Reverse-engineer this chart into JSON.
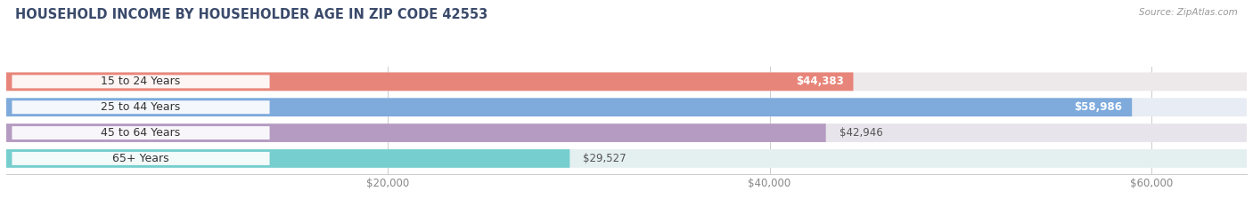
{
  "title": "HOUSEHOLD INCOME BY HOUSEHOLDER AGE IN ZIP CODE 42553",
  "source": "Source: ZipAtlas.com",
  "categories": [
    "15 to 24 Years",
    "25 to 44 Years",
    "45 to 64 Years",
    "65+ Years"
  ],
  "values": [
    44383,
    58986,
    42946,
    29527
  ],
  "bar_colors": [
    "#e8857a",
    "#7eaadc",
    "#b59bc2",
    "#76cece"
  ],
  "bg_colors": [
    "#ede8ea",
    "#e8ecf4",
    "#e8e4ec",
    "#e4eff0"
  ],
  "value_labels": [
    "$44,383",
    "$58,986",
    "$42,946",
    "$29,527"
  ],
  "label_inside": [
    true,
    true,
    false,
    false
  ],
  "xlim": [
    0,
    65000
  ],
  "xticks": [
    20000,
    40000,
    60000
  ],
  "xticklabels": [
    "$20,000",
    "$40,000",
    "$60,000"
  ],
  "title_color": "#3a4a6b",
  "source_color": "#999999",
  "title_fontsize": 10.5,
  "bar_label_fontsize": 8.5,
  "cat_label_fontsize": 9,
  "tick_fontsize": 8.5
}
